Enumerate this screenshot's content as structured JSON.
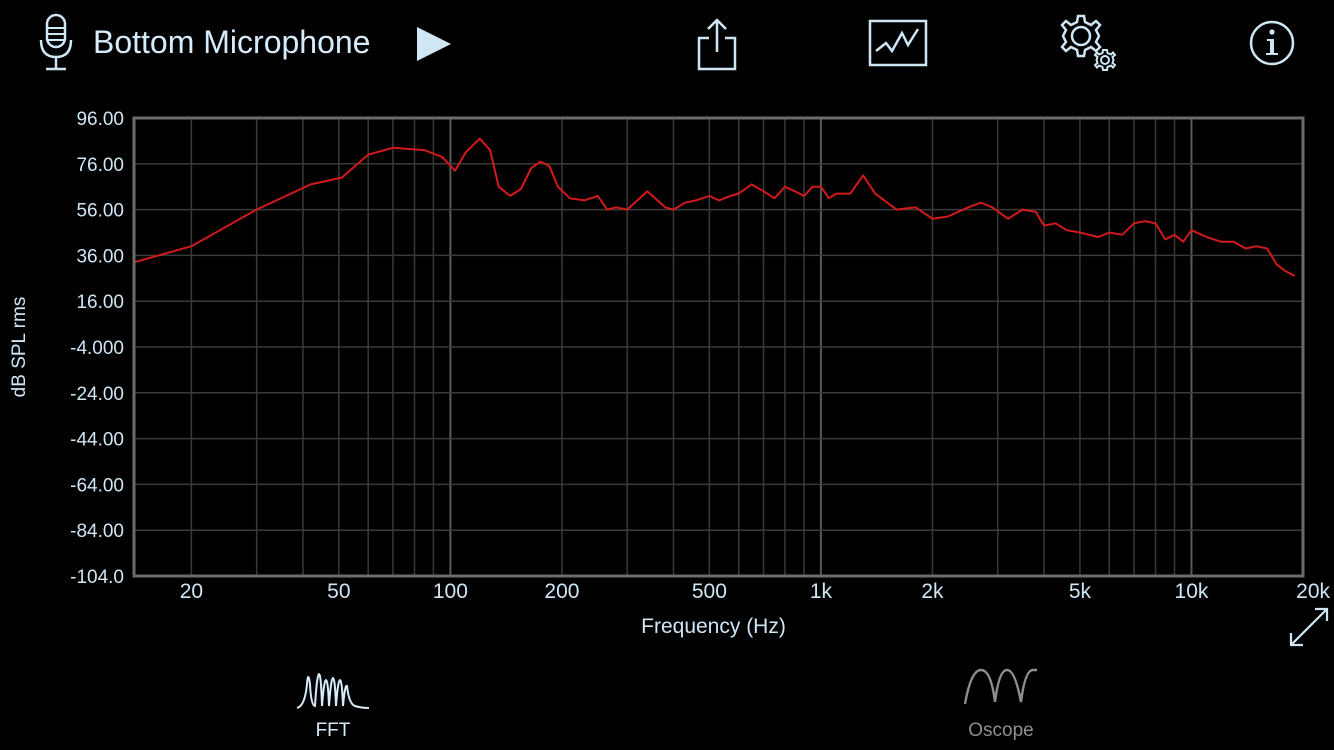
{
  "header": {
    "source_title": "Bottom Microphone",
    "icons": {
      "mic": "microphone-icon",
      "play": "play-icon",
      "share": "share-icon",
      "graph": "graph-icon",
      "settings": "gear-icon",
      "info": "info-icon"
    }
  },
  "chart_data": {
    "type": "line",
    "xlabel": "Frequency (Hz)",
    "ylabel": "dB SPL rms",
    "x_scale": "log",
    "xlim": [
      14,
      20000
    ],
    "ylim": [
      -104,
      96
    ],
    "grid": true,
    "y_ticks": [
      "96.00",
      "76.00",
      "56.00",
      "36.00",
      "16.00",
      "-4.000",
      "-24.00",
      "-44.00",
      "-64.00",
      "-84.00",
      "-104.0"
    ],
    "x_ticks": [
      {
        "value": 20,
        "label": "20"
      },
      {
        "value": 50,
        "label": "50"
      },
      {
        "value": 100,
        "label": "100"
      },
      {
        "value": 200,
        "label": "200"
      },
      {
        "value": 500,
        "label": "500"
      },
      {
        "value": 1000,
        "label": "1k"
      },
      {
        "value": 2000,
        "label": "2k"
      },
      {
        "value": 5000,
        "label": "5k"
      },
      {
        "value": 10000,
        "label": "10k"
      },
      {
        "value": 20000,
        "label": "20k"
      }
    ],
    "series": [
      {
        "color": "#d21a1a",
        "x": [
          14,
          20,
          30,
          42,
          51,
          60,
          70,
          85,
          95,
          103,
          110,
          120,
          128,
          135,
          145,
          155,
          165,
          175,
          185,
          195,
          210,
          230,
          250,
          265,
          280,
          300,
          340,
          380,
          400,
          430,
          460,
          500,
          530,
          570,
          600,
          650,
          700,
          750,
          800,
          850,
          900,
          950,
          1000,
          1050,
          1100,
          1200,
          1300,
          1400,
          1600,
          1800,
          2000,
          2200,
          2500,
          2700,
          2900,
          3200,
          3500,
          3800,
          4000,
          4300,
          4600,
          5000,
          5300,
          5600,
          6000,
          6500,
          7000,
          7500,
          8000,
          8500,
          9000,
          9500,
          10000,
          11000,
          12000,
          13000,
          14000,
          15000,
          16000,
          17000,
          18000,
          19000
        ],
        "y": [
          33,
          40,
          56,
          67,
          70,
          80,
          83,
          82,
          79,
          73,
          81,
          87,
          82,
          66,
          62,
          65,
          74,
          77,
          75,
          66,
          61,
          60,
          62,
          56,
          57,
          56,
          64,
          57,
          56,
          59,
          60,
          62,
          60,
          62,
          63,
          67,
          64,
          61,
          66,
          64,
          62,
          66,
          66,
          61,
          63,
          63,
          71,
          63,
          56,
          57,
          52,
          53,
          57,
          59,
          57,
          52,
          56,
          55,
          49,
          50,
          47,
          46,
          45,
          44,
          46,
          45,
          50,
          51,
          50,
          43,
          45,
          42,
          47,
          44,
          42,
          42,
          39,
          40,
          39,
          32,
          29,
          27
        ]
      }
    ]
  },
  "expand_icon": "expand-icon",
  "tabs": [
    {
      "label": "FFT",
      "icon": "fft-icon",
      "active": true
    },
    {
      "label": "Oscope",
      "icon": "sine-wave-icon",
      "active": false
    }
  ],
  "colors": {
    "background": "#000000",
    "accent": "#cfe6f5",
    "trace": "#d21a1a",
    "grid": "#3a3a3a",
    "frame": "#6b6b6b",
    "inactive": "#8a8f94"
  }
}
